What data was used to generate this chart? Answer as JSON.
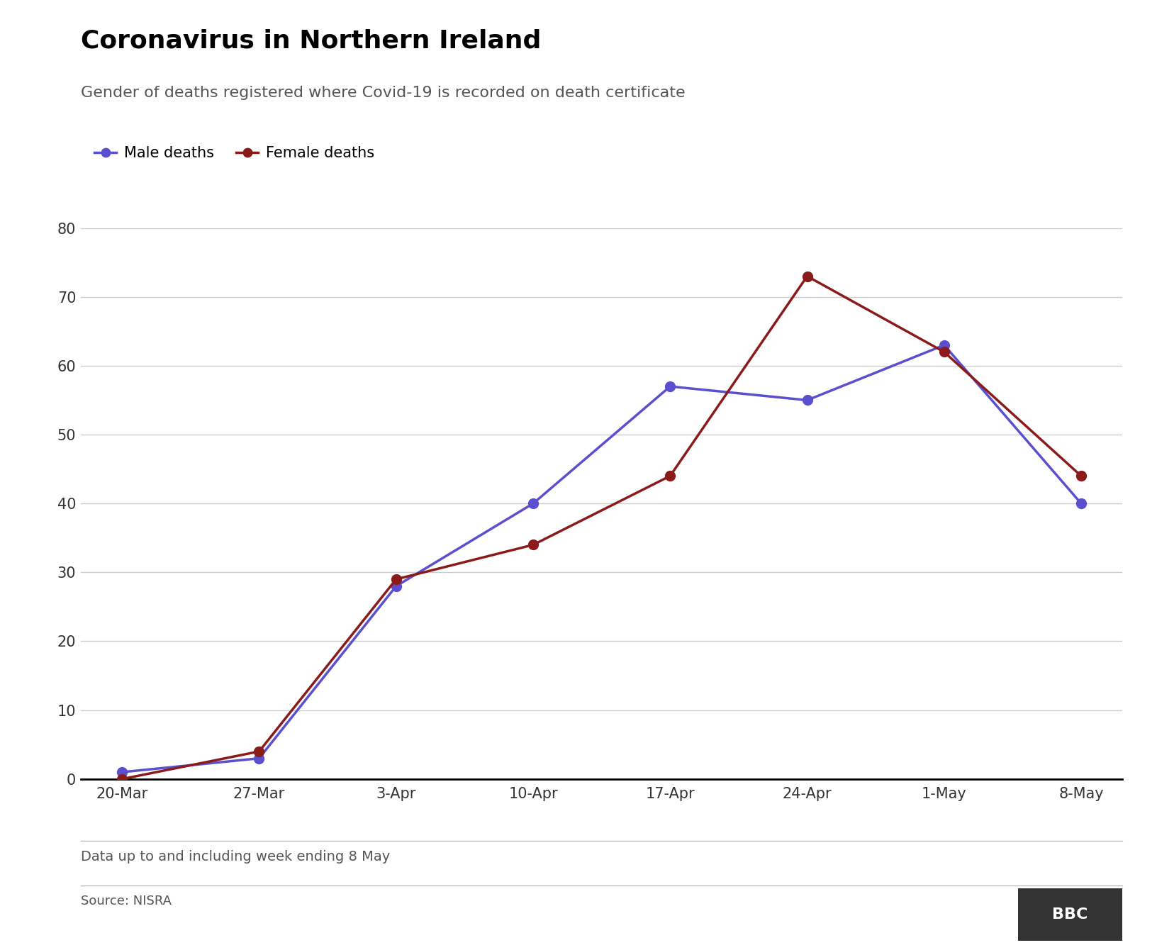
{
  "title": "Coronavirus in Northern Ireland",
  "subtitle": "Gender of deaths registered where Covid-19 is recorded on death certificate",
  "footnote": "Data up to and including week ending 8 May",
  "source": "Source: NISRA",
  "bbc_logo": "BBC",
  "x_labels": [
    "20-Mar",
    "27-Mar",
    "3-Apr",
    "10-Apr",
    "17-Apr",
    "24-Apr",
    "1-May",
    "8-May"
  ],
  "male_values": [
    1,
    3,
    28,
    40,
    57,
    55,
    63,
    40
  ],
  "female_values": [
    0,
    4,
    29,
    34,
    44,
    73,
    62,
    44
  ],
  "male_color": "#5a4fcf",
  "female_color": "#8b1a1a",
  "male_label": "Male deaths",
  "female_label": "Female deaths",
  "ylim": [
    0,
    80
  ],
  "yticks": [
    0,
    10,
    20,
    30,
    40,
    50,
    60,
    70,
    80
  ],
  "title_fontsize": 26,
  "subtitle_fontsize": 16,
  "axis_fontsize": 15,
  "legend_fontsize": 15,
  "footnote_fontsize": 14,
  "source_fontsize": 13,
  "line_width": 2.5,
  "marker_size": 10,
  "background_color": "#ffffff",
  "grid_color": "#cccccc",
  "axis_color": "#000000",
  "title_color": "#000000",
  "subtitle_color": "#555555",
  "footnote_color": "#555555"
}
